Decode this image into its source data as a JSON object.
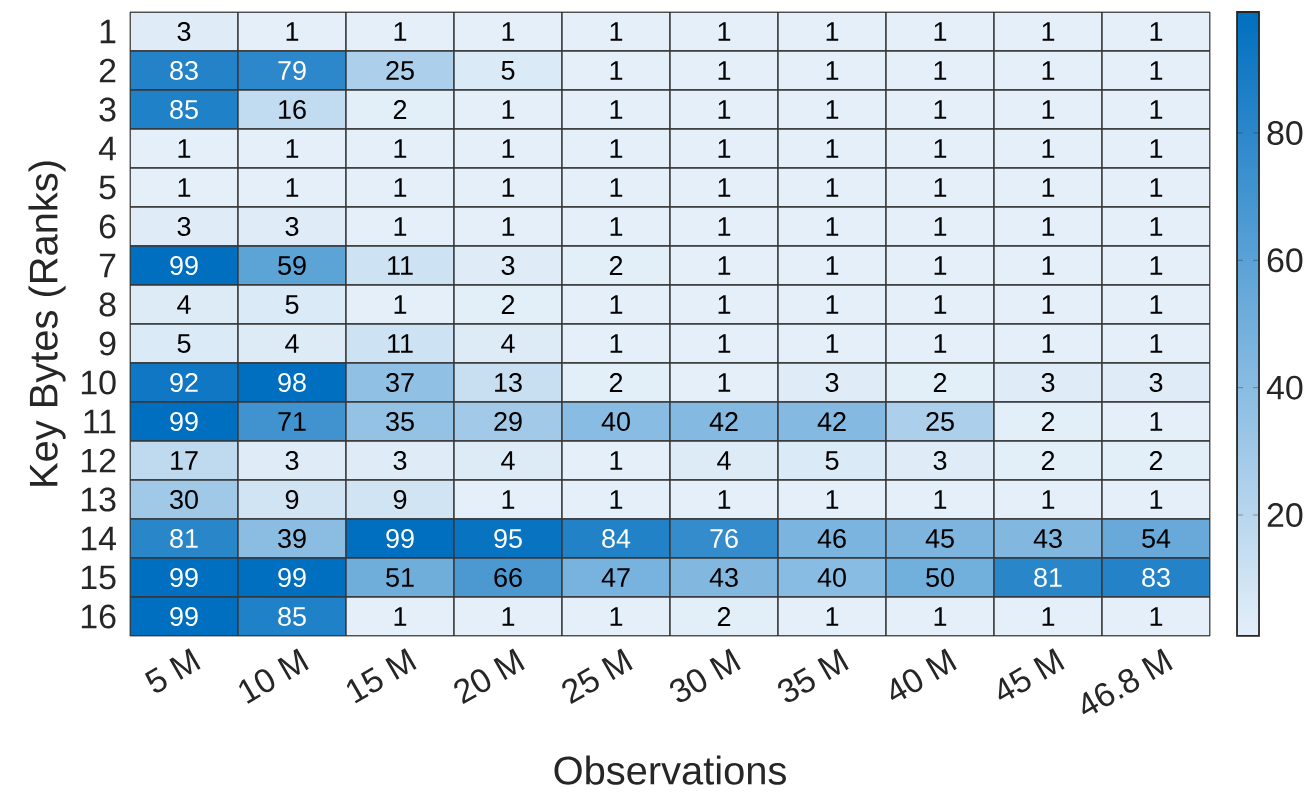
{
  "chart_data": {
    "type": "heatmap",
    "xlabel": "Observations",
    "ylabel": "Key Bytes (Ranks)",
    "categories": [
      "5 M",
      "10 M",
      "15 M",
      "20 M",
      "25 M",
      "30 M",
      "35 M",
      "40 M",
      "45 M",
      "46.8 M"
    ],
    "y_categories": [
      "1",
      "2",
      "3",
      "4",
      "5",
      "6",
      "7",
      "8",
      "9",
      "10",
      "11",
      "12",
      "13",
      "14",
      "15",
      "16"
    ],
    "cells": [
      [
        3,
        1,
        1,
        1,
        1,
        1,
        1,
        1,
        1,
        1
      ],
      [
        83,
        79,
        25,
        5,
        1,
        1,
        1,
        1,
        1,
        1
      ],
      [
        85,
        16,
        2,
        1,
        1,
        1,
        1,
        1,
        1,
        1
      ],
      [
        1,
        1,
        1,
        1,
        1,
        1,
        1,
        1,
        1,
        1
      ],
      [
        1,
        1,
        1,
        1,
        1,
        1,
        1,
        1,
        1,
        1
      ],
      [
        3,
        3,
        1,
        1,
        1,
        1,
        1,
        1,
        1,
        1
      ],
      [
        99,
        59,
        11,
        3,
        2,
        1,
        1,
        1,
        1,
        1
      ],
      [
        4,
        5,
        1,
        2,
        1,
        1,
        1,
        1,
        1,
        1
      ],
      [
        5,
        4,
        11,
        4,
        1,
        1,
        1,
        1,
        1,
        1
      ],
      [
        92,
        98,
        37,
        13,
        2,
        1,
        3,
        2,
        3,
        3
      ],
      [
        99,
        71,
        35,
        29,
        40,
        42,
        42,
        25,
        2,
        1
      ],
      [
        17,
        3,
        3,
        4,
        1,
        4,
        5,
        3,
        2,
        2
      ],
      [
        30,
        9,
        9,
        1,
        1,
        1,
        1,
        1,
        1,
        1
      ],
      [
        81,
        39,
        99,
        95,
        84,
        76,
        46,
        45,
        43,
        54
      ],
      [
        99,
        99,
        51,
        66,
        47,
        43,
        40,
        50,
        81,
        83
      ],
      [
        99,
        85,
        1,
        1,
        1,
        2,
        1,
        1,
        1,
        1
      ]
    ],
    "clim": [
      1,
      99
    ],
    "cticks": [
      20,
      40,
      60,
      80
    ],
    "data_labels": true
  }
}
